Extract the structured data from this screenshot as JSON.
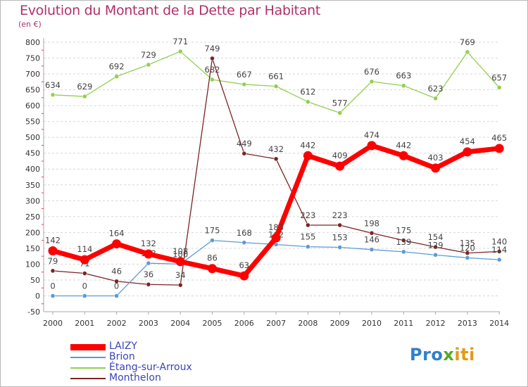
{
  "header": {
    "title": "Evolution du Montant de la Dette par Habitant",
    "unit": "(en €)"
  },
  "logo": {
    "part1": "Pro",
    "part2": "x",
    "part3": "iti"
  },
  "legend": {
    "items": [
      {
        "label": "LAIZY",
        "color": "#ff0000"
      },
      {
        "label": "Brion",
        "color": "#5b9bd5"
      },
      {
        "label": "Étang-sur-Arroux",
        "color": "#92d050"
      },
      {
        "label": "Monthelon",
        "color": "#7b2424"
      }
    ]
  },
  "chart_data": {
    "type": "line",
    "title": "Evolution du Montant de la Dette par Habitant",
    "ylabel": "(en €)",
    "xlabel": "",
    "ylim": [
      -50,
      800
    ],
    "yticks": [
      -50,
      0,
      50,
      100,
      150,
      200,
      250,
      300,
      350,
      400,
      450,
      500,
      550,
      600,
      650,
      700,
      750,
      800
    ],
    "grid": "horizontal dashed",
    "legend_position": "bottom-left",
    "x": [
      "2000",
      "2001",
      "2002",
      "2003",
      "2004",
      "2005",
      "2006",
      "2007",
      "2008",
      "2009",
      "2010",
      "2011",
      "2012",
      "2013",
      "2014"
    ],
    "series": [
      {
        "name": "Étang-sur-Arroux",
        "color": "#92d050",
        "values": [
          634,
          629,
          692,
          729,
          771,
          682,
          667,
          661,
          612,
          577,
          676,
          663,
          623,
          769,
          657
        ]
      },
      {
        "name": "Monthelon",
        "color": "#7b2424",
        "values": [
          79,
          71,
          46,
          36,
          34,
          749,
          449,
          432,
          223,
          223,
          198,
          175,
          154,
          135,
          140
        ]
      },
      {
        "name": "Brion",
        "color": "#5b9bd5",
        "values": [
          0,
          0,
          0,
          103,
          100,
          175,
          168,
          162,
          155,
          153,
          146,
          139,
          129,
          120,
          114
        ]
      },
      {
        "name": "LAIZY",
        "color": "#ff0000",
        "values": [
          142,
          114,
          164,
          132,
          108,
          86,
          63,
          183,
          442,
          409,
          474,
          442,
          403,
          454,
          465
        ]
      }
    ]
  }
}
